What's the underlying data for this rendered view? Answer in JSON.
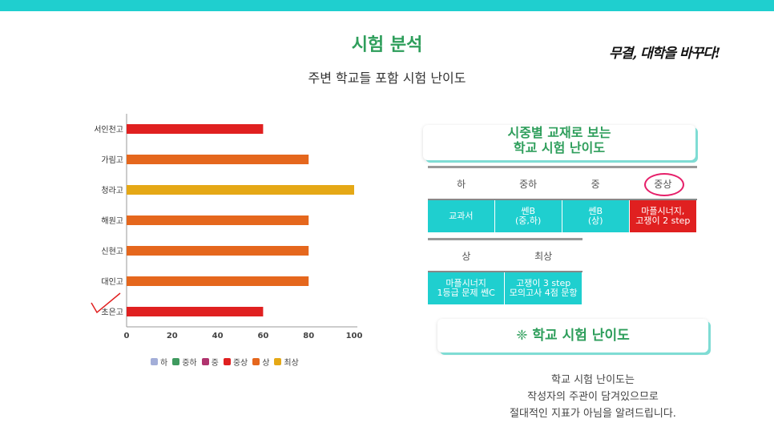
{
  "header": {
    "title": "시험 분석",
    "subtitle": "주변 학교들 포함 시험 난이도",
    "slogan": "무결, 대학을 바꾸다!"
  },
  "colors": {
    "accent": "#1fcfcf",
    "title_green": "#2e9e5b",
    "red": "#e02020",
    "circle": "#e6206a"
  },
  "chart_data": {
    "type": "bar",
    "orientation": "horizontal",
    "categories": [
      "서인천고",
      "가림고",
      "청라고",
      "해원고",
      "신현고",
      "대인고",
      "초은고"
    ],
    "values": [
      60,
      80,
      100,
      80,
      80,
      80,
      60
    ],
    "levels": [
      "중상",
      "상",
      "최상",
      "상",
      "상",
      "상",
      "중상"
    ],
    "xlim": [
      0,
      100
    ],
    "xticks": [
      "0",
      "20",
      "40",
      "60",
      "80",
      "100"
    ],
    "legend_position": "bottom",
    "legend": [
      {
        "name": "하",
        "color": "#a3aed8"
      },
      {
        "name": "중하",
        "color": "#3f9a5f"
      },
      {
        "name": "중",
        "color": "#b0336e"
      },
      {
        "name": "중상",
        "color": "#e02020"
      },
      {
        "name": "상",
        "color": "#e5671d"
      },
      {
        "name": "최상",
        "color": "#e5a816"
      }
    ]
  },
  "card1": {
    "line1": "시중별 교재로 보는",
    "line2": "학교 시험 난이도"
  },
  "table1": {
    "headers": [
      "하",
      "중하",
      "중",
      "중상"
    ],
    "cells": [
      {
        "l1": "교과서",
        "l2": ""
      },
      {
        "l1": "쎈B",
        "l2": "(중,하)"
      },
      {
        "l1": "쎈B",
        "l2": "(상)"
      },
      {
        "l1": "마플시너지,",
        "l2": "고쟁이 2 step"
      }
    ]
  },
  "table2": {
    "headers": [
      "상",
      "최상"
    ],
    "cells": [
      {
        "l1": "마플시너지",
        "l2": "1등급 문제 쎈C"
      },
      {
        "l1": "고쟁이 3 step",
        "l2": "모의고사 4점 문항"
      }
    ]
  },
  "card2": {
    "label": "❈ 학교 시험 난이도"
  },
  "note": {
    "line1": "학교 시험 난이도는",
    "line2": "작성자의 주관이 담겨있으므로",
    "line3": "절대적인 지표가 아님을 알려드립니다."
  }
}
